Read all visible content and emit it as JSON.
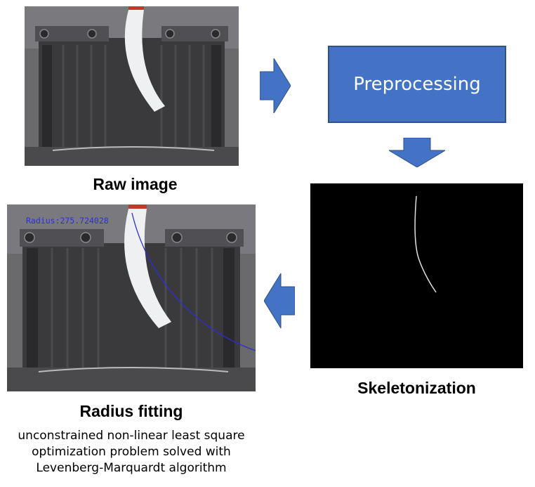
{
  "diagram": {
    "colors": {
      "block": "#4472c4",
      "arrow": "#4472c4",
      "fit_circle": "#2d2dd6",
      "skeleton_bg": "#000000"
    },
    "raw_image": {
      "caption": "Raw image"
    },
    "preprocessing": {
      "label": "Preprocessing"
    },
    "skeletonization": {
      "caption": "Skeletonization"
    },
    "radius_fitting": {
      "caption": "Radius fitting",
      "overlay_label": "Radius:275.724028",
      "description_lines": [
        "unconstrained non-linear least square",
        "optimization problem solved with",
        "Levenberg-Marquardt algorithm"
      ]
    }
  }
}
